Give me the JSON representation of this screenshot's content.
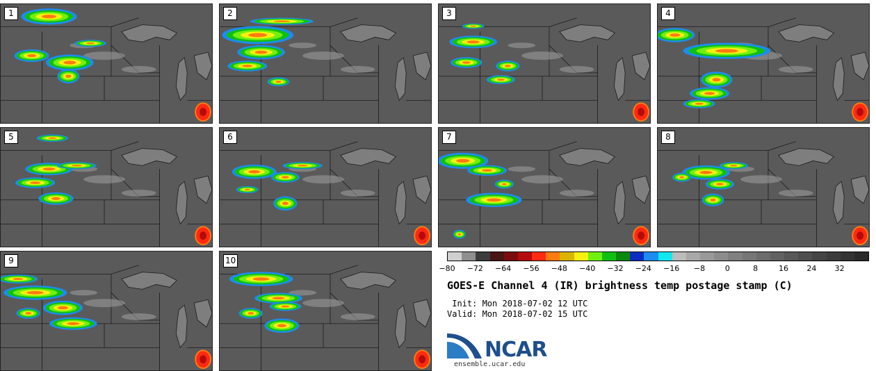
{
  "panels": [
    {
      "label": "1"
    },
    {
      "label": "2"
    },
    {
      "label": "3"
    },
    {
      "label": "4"
    },
    {
      "label": "5"
    },
    {
      "label": "6"
    },
    {
      "label": "7"
    },
    {
      "label": "8"
    },
    {
      "label": "9"
    },
    {
      "label": "10"
    }
  ],
  "colorbar": {
    "colors": [
      "#cfcfcf",
      "#8f8f8f",
      "#3c3c3c",
      "#4a1515",
      "#7a0c0c",
      "#b40c0c",
      "#ff2a10",
      "#ff7a10",
      "#d9b400",
      "#f5f010",
      "#70f010",
      "#10c010",
      "#0a8a0a",
      "#0a2cc0",
      "#1c8cf0",
      "#10e8f0",
      "#bcbcbc",
      "#a8a8a8",
      "#999999",
      "#8c8c8c",
      "#808080",
      "#767676",
      "#6c6c6c",
      "#626262",
      "#585858",
      "#4e4e4e",
      "#454545",
      "#3c3c3c",
      "#333333",
      "#2a2a2a"
    ],
    "ticks": [
      "−80",
      "−72",
      "−64",
      "−56",
      "−48",
      "−40",
      "−32",
      "−24",
      "−16",
      "−8",
      "0",
      "8",
      "16",
      "24",
      "32"
    ]
  },
  "title": "GOES-E Channel 4 (IR) brightness temp postage stamp (C)",
  "init_line": " Init: Mon 2018-07-02 12 UTC",
  "valid_line": "Valid: Mon 2018-07-02 15 UTC",
  "logo": {
    "name": "NCAR",
    "url": "ensemble.ucar.edu"
  }
}
